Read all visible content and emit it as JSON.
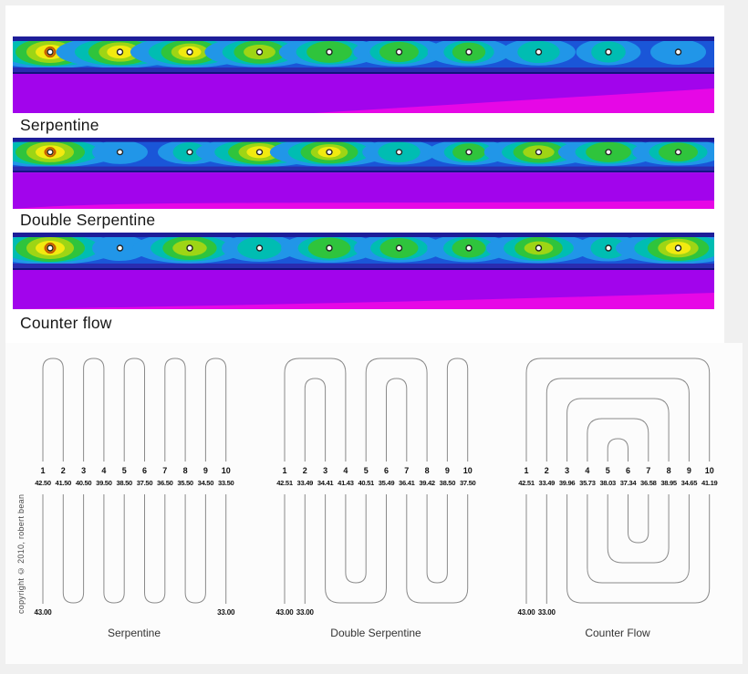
{
  "colors": {
    "band_bg_blue": "#1a56d8",
    "top_strip": "#1d1d99",
    "divider": "#2a2cb0",
    "divider_core": "#10127e",
    "purple": "#a204ec",
    "magenta": "#e607e6",
    "glow_pale_blue": "#2196e8",
    "glow_teal": "#00bdb2",
    "glow_green": "#2fc43c",
    "glow_yellow_green": "#9ed515",
    "glow_yellow": "#f2ea10",
    "glow_orange": "#f0a008",
    "hot_ring": "#c25a00",
    "pipe_line": "#8a8a8a",
    "label_text": "#111111"
  },
  "thermal_sections": [
    {
      "label": "Serpentine",
      "temps": [
        42.5,
        41.5,
        40.5,
        39.5,
        38.5,
        37.5,
        36.5,
        35.5,
        34.5,
        33.5
      ],
      "accent": "wedge-right"
    },
    {
      "label": "Double Serpentine",
      "temps": [
        42.51,
        33.49,
        34.41,
        41.43,
        40.51,
        35.49,
        36.41,
        39.42,
        38.5,
        37.5
      ],
      "accent": "wave-bottom"
    },
    {
      "label": "Counter flow",
      "temps": [
        42.51,
        33.49,
        39.96,
        35.73,
        38.03,
        37.34,
        36.58,
        38.95,
        34.65,
        41.19
      ],
      "accent": "strip-right"
    }
  ],
  "diagrams": [
    {
      "title": "Serpentine",
      "numbers": [
        "1",
        "2",
        "3",
        "4",
        "5",
        "6",
        "7",
        "8",
        "9",
        "10"
      ],
      "temps": [
        "42.50",
        "41.50",
        "40.50",
        "39.50",
        "38.50",
        "37.50",
        "36.50",
        "35.50",
        "34.50",
        "33.50"
      ],
      "inlet_label": "43.00",
      "outlet_label": "33.00",
      "inlet_index": 0,
      "outlet_index": 9,
      "top_connections": [
        [
          0,
          1
        ],
        [
          2,
          3
        ],
        [
          4,
          5
        ],
        [
          6,
          7
        ],
        [
          8,
          9
        ]
      ],
      "bottom_connections": [
        [
          1,
          2
        ],
        [
          3,
          4
        ],
        [
          5,
          6
        ],
        [
          7,
          8
        ]
      ]
    },
    {
      "title": "Double Serpentine",
      "numbers": [
        "1",
        "2",
        "3",
        "4",
        "5",
        "6",
        "7",
        "8",
        "9",
        "10"
      ],
      "temps": [
        "42.51",
        "33.49",
        "34.41",
        "41.43",
        "40.51",
        "35.49",
        "36.41",
        "39.42",
        "38.50",
        "37.50"
      ],
      "inlet_label": "43.00",
      "outlet_label": "33.00",
      "inlet_index": 0,
      "outlet_index": 1,
      "top_connections": [
        [
          0,
          3
        ],
        [
          1,
          2
        ],
        [
          4,
          7
        ],
        [
          5,
          6
        ],
        [
          8,
          9
        ]
      ],
      "bottom_connections": [
        [
          2,
          5
        ],
        [
          3,
          4
        ],
        [
          6,
          9
        ],
        [
          7,
          8
        ]
      ]
    },
    {
      "title": "Counter Flow",
      "numbers": [
        "1",
        "2",
        "3",
        "4",
        "5",
        "6",
        "7",
        "8",
        "9",
        "10"
      ],
      "temps": [
        "42.51",
        "33.49",
        "39.96",
        "35.73",
        "38.03",
        "37.34",
        "36.58",
        "38.95",
        "34.65",
        "41.19"
      ],
      "inlet_label": "43.00",
      "outlet_label": "33.00",
      "inlet_index": 0,
      "outlet_index": 1,
      "top_connections": [
        [
          0,
          9
        ],
        [
          1,
          8
        ],
        [
          2,
          7
        ],
        [
          3,
          6
        ],
        [
          4,
          5
        ]
      ],
      "bottom_connections": [
        [
          2,
          9
        ],
        [
          3,
          8
        ],
        [
          4,
          7
        ],
        [
          5,
          6
        ]
      ]
    }
  ],
  "copyright": "copyright © 2010, robert bean"
}
